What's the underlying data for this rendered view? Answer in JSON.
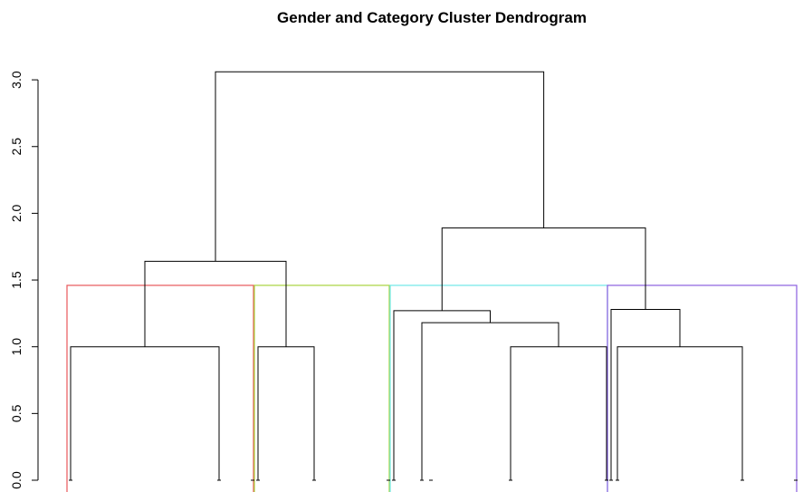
{
  "chart_data": {
    "type": "dendrogram",
    "title": "Gender and Category Cluster Dendrogram",
    "xlabel": "",
    "ylabel": "",
    "ylim": [
      0,
      3.2
    ],
    "y_ticks": [
      "0.0",
      "0.5",
      "1.0",
      "1.5",
      "2.0",
      "2.5",
      "3.0"
    ],
    "y_tick_values": [
      0,
      0.5,
      1.0,
      1.5,
      2.0,
      2.5,
      3.0
    ],
    "leaf_count": 15,
    "merges": [
      {
        "left": 0,
        "right": 1,
        "height": 1.0
      },
      {
        "left": 3,
        "right": 4,
        "height": 1.0
      },
      {
        "left": 9,
        "right": 10,
        "height": 1.0
      },
      {
        "left": 12,
        "right": 13,
        "height": 1.0
      },
      {
        "left": 7,
        "right": "m2",
        "height": 1.18
      },
      {
        "left": 6,
        "right": "m4",
        "height": 1.27
      },
      {
        "left": 11,
        "right": "m3",
        "height": 1.28
      },
      {
        "left": "m0",
        "right": "m1",
        "height": 1.64
      },
      {
        "left": "m5",
        "right": "m6",
        "height": 1.89
      },
      {
        "left": "m7",
        "right": "m8",
        "height": 3.06
      }
    ],
    "cut_height": 1.46,
    "cluster_boxes": [
      {
        "from_leaf": 0,
        "to_leaf": 2,
        "color": "#e8575a"
      },
      {
        "from_leaf": 3,
        "to_leaf": 5,
        "color": "#a8d43c"
      },
      {
        "from_leaf": 6,
        "to_leaf": 10,
        "color": "#6ee8e8"
      },
      {
        "from_leaf": 11,
        "to_leaf": 14,
        "color": "#8a5ee0"
      }
    ],
    "line_color": "#000000"
  }
}
